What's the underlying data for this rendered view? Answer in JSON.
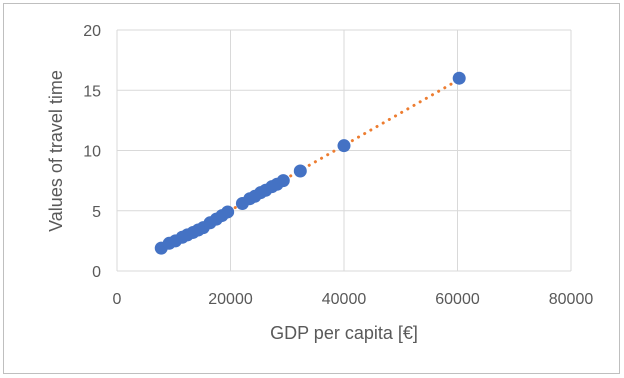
{
  "chart_data": {
    "type": "scatter",
    "title": "",
    "xlabel": "GDP per capita [€]",
    "ylabel": "Values of travel time",
    "xlim": [
      0,
      80000
    ],
    "ylim": [
      0,
      20
    ],
    "x_ticks": [
      0,
      20000,
      40000,
      60000,
      80000
    ],
    "y_ticks": [
      0,
      5,
      10,
      15,
      20
    ],
    "x_tick_labels": [
      "0",
      "20000",
      "40000",
      "60000",
      "80000"
    ],
    "y_tick_labels": [
      "0",
      "5",
      "10",
      "15",
      "20"
    ],
    "grid": true,
    "legend": "none",
    "marker_color": "#4472c4",
    "trendline": {
      "type": "linear",
      "style": "dotted",
      "color": "#ed7d31",
      "x_range": [
        7800,
        60300
      ]
    },
    "series": [
      {
        "x": [
          7800,
          9200,
          10300,
          11500,
          12400,
          13400,
          14300,
          15200,
          16400,
          17500,
          18500,
          19500,
          22100,
          23400,
          24300,
          25300,
          26200,
          27300,
          28200,
          29300,
          32300,
          40000,
          60300
        ],
        "y": [
          1.9,
          2.3,
          2.5,
          2.8,
          3.0,
          3.2,
          3.4,
          3.6,
          4.0,
          4.3,
          4.6,
          4.9,
          5.6,
          6.0,
          6.2,
          6.5,
          6.7,
          7.0,
          7.2,
          7.5,
          8.3,
          10.4,
          16.0
        ]
      }
    ]
  }
}
